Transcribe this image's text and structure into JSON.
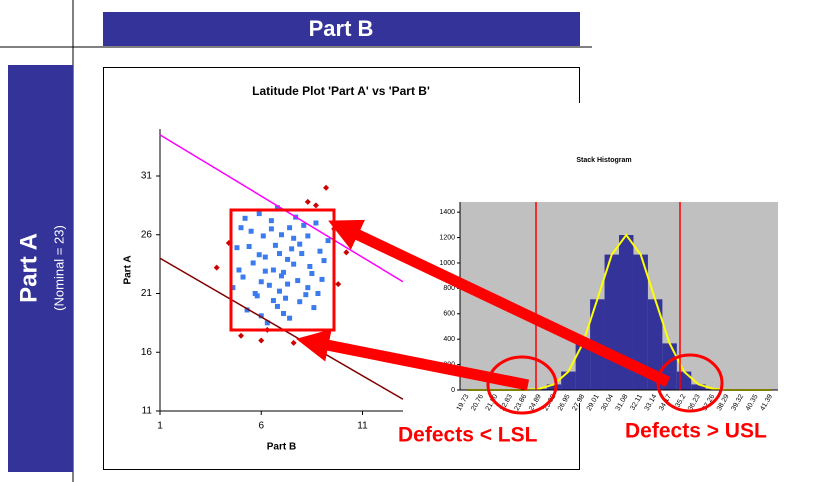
{
  "header": {
    "part_b": "Part B",
    "part_a": "Part A",
    "nominal": "(Nominal = 23)"
  },
  "annotations": {
    "lsl": "Defects < LSL",
    "usl": "Defects > USL"
  },
  "chart_data": [
    {
      "type": "scatter",
      "title": "Latitude Plot 'Part A' vs 'Part B'",
      "x_label": "Part B",
      "y_label": "Part A",
      "xlim": [
        1,
        13
      ],
      "xticks": [
        1,
        6,
        11
      ],
      "ylim": [
        11,
        35
      ],
      "yticks": [
        11,
        16,
        21,
        26,
        31
      ],
      "series": [
        {
          "color": "#3a7bf0",
          "marker": "square",
          "x": [
            6.2,
            7.1,
            5.5,
            8.3,
            6.8,
            7.6,
            5.1,
            8.9,
            6.5,
            7.9,
            5.8,
            7.3,
            6.0,
            8.1,
            4.8,
            9.0,
            6.7,
            7.4,
            5.3,
            8.6,
            6.9,
            7.7,
            5.6,
            6.3,
            8.4,
            7.0,
            4.6,
            9.3,
            6.1,
            7.8,
            5.9,
            8.0,
            6.6,
            7.2,
            5.0,
            8.7,
            6.4,
            7.5,
            5.4,
            8.2,
            6.8,
            7.1,
            4.9,
            9.1,
            6.0,
            7.9,
            5.7,
            8.5,
            6.5,
            7.3,
            5.2,
            8.8,
            6.2,
            7.6,
            6.9,
            7.0,
            6.6,
            7.4,
            5.9,
            8.3
          ],
          "values": [
            24.1,
            22.8,
            26.3,
            21.5,
            19.9,
            25.7,
            22.4,
            24.6,
            27.2,
            20.3,
            20.8,
            23.9,
            22.0,
            26.8,
            24.9,
            22.2,
            25.1,
            18.9,
            19.6,
            19.8,
            21.2,
            27.5,
            23.6,
            18.5,
            23.3,
            26.0,
            21.5,
            25.5,
            25.9,
            22.1,
            27.8,
            24.4,
            23.0,
            20.6,
            26.6,
            27.0,
            21.7,
            24.8,
            25.0,
            20.9,
            28.3,
            19.3,
            23.0,
            23.8,
            19.1,
            25.2,
            21.0,
            22.7,
            26.5,
            21.8,
            27.4,
            21.0,
            22.9,
            23.5,
            24.4,
            22.5,
            20.4,
            26.6,
            24.3,
            25.9
          ]
        },
        {
          "color": "#cc0000",
          "marker": "diamond",
          "x": [
            9.2,
            8.3,
            9.6,
            10.2,
            9.8,
            5.0,
            6.3,
            7.6,
            4.4,
            8.7,
            3.8,
            6.0
          ],
          "values": [
            30.0,
            28.8,
            26.5,
            24.5,
            21.8,
            17.4,
            17.9,
            16.8,
            25.3,
            28.5,
            23.2,
            17.0
          ]
        },
        {
          "color": "#ff00ff",
          "marker": "line",
          "x": [
            1,
            13
          ],
          "values": [
            34.5,
            22
          ]
        },
        {
          "color": "#800000",
          "marker": "line",
          "x": [
            1,
            13
          ],
          "values": [
            24,
            12
          ]
        }
      ]
    },
    {
      "type": "bar",
      "title": "Stack Histogram",
      "color": "#333399",
      "curve_color": "#ffff00",
      "background": "#c0c0c0",
      "categories": [
        "19.73",
        "20.76",
        "21.80",
        "22.83",
        "23.86",
        "24.89",
        "25.92",
        "26.95",
        "27.98",
        "29.01",
        "30.04",
        "31.08",
        "32.11",
        "33.14",
        "34.17",
        "35.2",
        "36.23",
        "37.26",
        "38.29",
        "39.32",
        "40.35",
        "41.39"
      ],
      "values": [
        0,
        0,
        0,
        0,
        0,
        10,
        44,
        145,
        367,
        714,
        1066,
        1220,
        1066,
        714,
        367,
        145,
        44,
        10,
        0,
        0,
        0,
        0
      ],
      "ylim": [
        0,
        1480
      ],
      "yticks": [
        0,
        200,
        400,
        600,
        800,
        1000,
        1200,
        1400
      ]
    }
  ]
}
